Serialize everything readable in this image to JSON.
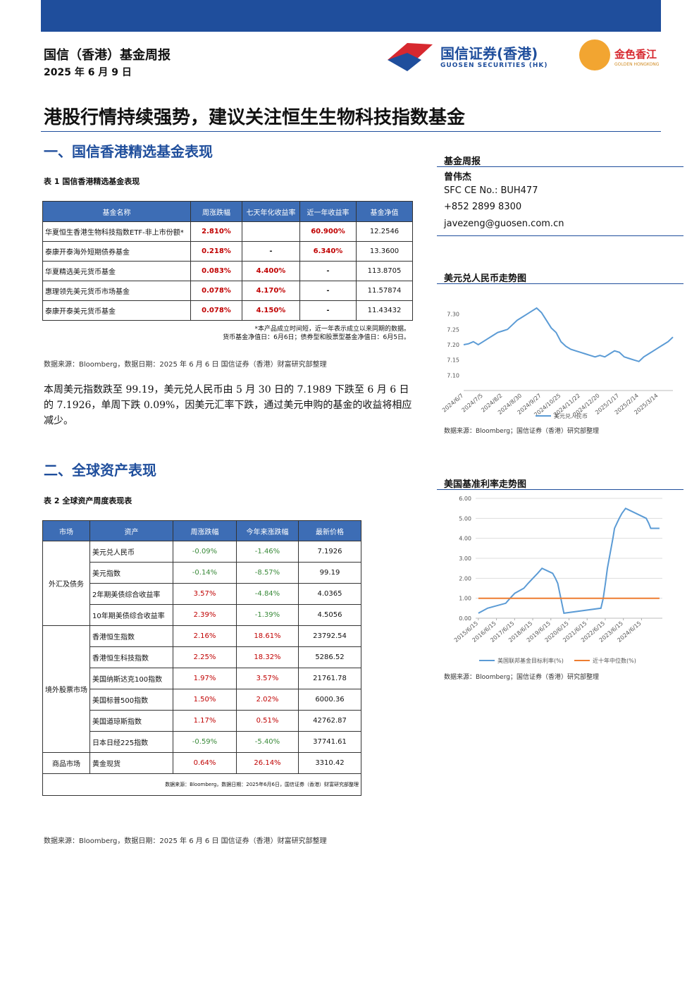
{
  "header": {
    "report": "国信（香港）基金周报",
    "date": "2025 年 6 月 9 日",
    "brand_cn": "国信证券(香港)",
    "brand_en": "GUOSEN SECURITIES (HK)",
    "partner_cn": "金色香江",
    "partner_en": "GOLDEN HONGKONG"
  },
  "title": "港股行情持续强势，建议关注恒生生物科技指数基金",
  "sidebar": {
    "label": "基金周报",
    "name": "曾伟杰",
    "sfc": "SFC CE No.: BUH477",
    "phone": "+852 2899 8300",
    "email": "javezeng@guosen.com.cn"
  },
  "section1": {
    "heading": "一、国信香港精选基金表现",
    "caption": "表 1   国信香港精选基金表现",
    "table": {
      "columns": [
        "基金名称",
        "周涨跌幅",
        "七天年化收益率",
        "近一年收益率",
        "基金净值"
      ],
      "rows": [
        [
          "华夏恒生香港生物科技指数ETF-非上市份额*",
          "2.810%",
          null,
          "60.900%",
          "12.2546"
        ],
        [
          "泰康开泰海外短期债券基金",
          "0.218%",
          "-",
          "6.340%",
          "13.3600"
        ],
        [
          "华夏精选美元货币基金",
          "0.083%",
          "4.400%",
          "-",
          "113.8705"
        ],
        [
          "惠理领先美元货币市场基金",
          "0.078%",
          "4.170%",
          "-",
          "11.57874"
        ],
        [
          "泰康开泰美元货币基金",
          "0.078%",
          "4.150%",
          "-",
          "11.43432"
        ]
      ]
    },
    "notes": [
      "*本产品成立时间短，近一年表示成立以来同期的数据。",
      "货币基金净值日：6月6日；债券型和股票型基金净值日：6月5日。"
    ],
    "source": "数据来源：Bloomberg，数据日期：2025 年 6 月 6 日 国信证券（香港）财富研究部整理",
    "paragraph": "本周美元指数跌至 99.19，美元兑人民币由 5 月 30 日的 7.1989 下跌至 6 月 6 日的 7.1926，单周下跌 0.09%，因美元汇率下跌，通过美元申购的基金的收益将相应减少。"
  },
  "section2": {
    "heading": "二、全球资产表现",
    "caption": "表 2   全球资产周度表现表",
    "table": {
      "columns": [
        "市场",
        "资产",
        "周涨跌幅",
        "今年来涨跌幅",
        "最新价格"
      ],
      "groups": [
        {
          "market": "外汇及债务",
          "rows": [
            [
              "美元兑人民币",
              "-0.09%",
              "-1.46%",
              "7.1926"
            ],
            [
              "美元指数",
              "-0.14%",
              "-8.57%",
              "99.19"
            ],
            [
              "2年期美债综合收益率",
              "3.57%",
              "-4.84%",
              "4.0365"
            ],
            [
              "10年期美债综合收益率",
              "2.39%",
              "-1.39%",
              "4.5056"
            ]
          ]
        },
        {
          "market": "境外股票市场",
          "rows": [
            [
              "香港恒生指数",
              "2.16%",
              "18.61%",
              "23792.54"
            ],
            [
              "香港恒生科技指数",
              "2.25%",
              "18.32%",
              "5286.52"
            ],
            [
              "美国纳斯达克100指数",
              "1.97%",
              "3.57%",
              "21761.78"
            ],
            [
              "美国标普500指数",
              "1.50%",
              "2.02%",
              "6000.36"
            ],
            [
              "美国道琼斯指数",
              "1.17%",
              "0.51%",
              "42762.87"
            ],
            [
              "日本日经225指数",
              "-0.59%",
              "-5.40%",
              "37741.61"
            ]
          ]
        },
        {
          "market": "商品市场",
          "rows": [
            [
              "黄金现货",
              "0.64%",
              "26.14%",
              "3310.42"
            ]
          ]
        }
      ],
      "note": "数据来源：Bloomberg，数据日期：2025年6月6日，国信证券（香港）财富研究部整理"
    },
    "source": "数据来源：Bloomberg，数据日期：2025 年 6 月 6 日 国信证券（香港）财富研究部整理"
  },
  "chart_data": [
    {
      "type": "line",
      "title": "美元兑人民币走势图",
      "source": "数据来源：Bloomberg；国信证券（香港）研究部整理",
      "categories": [
        "2024/6/7",
        null,
        null,
        null,
        "2024/7/5",
        null,
        null,
        null,
        "2024/8/2",
        null,
        null,
        null,
        "2024/8/30",
        null,
        null,
        null,
        "2024/9/27",
        null,
        null,
        null,
        "2024/10/25",
        null,
        null,
        null,
        "2024/11/22",
        null,
        null,
        null,
        "2024/12/20",
        null,
        null,
        null,
        "2025/1/17",
        null,
        null,
        null,
        "2025/2/14",
        null,
        null,
        null,
        "2025/3/14",
        null,
        null,
        null
      ],
      "series": [
        {
          "name": "美元兑人民币",
          "color": "#5b9bd5",
          "values": [
            7.2,
            7.203,
            7.21,
            7.2,
            7.21,
            7.22,
            7.23,
            7.24,
            7.245,
            7.25,
            7.265,
            7.28,
            7.29,
            7.3,
            7.31,
            7.32,
            7.305,
            7.28,
            7.255,
            7.24,
            7.21,
            7.195,
            7.185,
            7.18,
            7.175,
            7.17,
            7.165,
            7.16,
            7.165,
            7.16,
            7.17,
            7.18,
            7.175,
            7.16,
            7.155,
            7.15,
            7.145,
            7.16,
            7.17,
            7.18,
            7.19,
            7.2,
            7.21,
            7.225
          ]
        }
      ],
      "ylim": [
        7.05,
        7.35
      ],
      "yticks": [
        {
          "value": 7.1,
          "label": "7.10"
        },
        {
          "value": 7.15,
          "label": "7.15"
        },
        {
          "value": 7.2,
          "label": "7.20"
        },
        {
          "value": 7.25,
          "label": "7.25"
        },
        {
          "value": 7.3,
          "label": "7.30"
        }
      ],
      "grid": false
    },
    {
      "type": "line",
      "title": "美国基准利率走势图",
      "source": "数据来源：Bloomberg；国信证券（香港）研究部整理",
      "xlim": [
        2015.3,
        2025.6
      ],
      "xticks": [
        {
          "value": 2015.45,
          "label": "2015/6/15"
        },
        {
          "value": 2016.45,
          "label": "2016/6/15"
        },
        {
          "value": 2017.45,
          "label": "2017/6/15"
        },
        {
          "value": 2018.45,
          "label": "2018/6/15"
        },
        {
          "value": 2019.45,
          "label": "2019/6/15"
        },
        {
          "value": 2020.45,
          "label": "2020/6/15"
        },
        {
          "value": 2021.45,
          "label": "2021/6/15"
        },
        {
          "value": 2022.45,
          "label": "2022/6/15"
        },
        {
          "value": 2023.45,
          "label": "2023/6/15"
        },
        {
          "value": 2024.45,
          "label": "2024/6/15"
        }
      ],
      "series": [
        {
          "name": "美国联邦基金目标利率(%)",
          "color": "#5b9bd5",
          "x": [
            2015.45,
            2015.96,
            2016.96,
            2017.2,
            2017.46,
            2017.96,
            2018.2,
            2018.46,
            2018.72,
            2018.96,
            2019.55,
            2019.7,
            2019.83,
            2020.17,
            2022.21,
            2022.34,
            2022.46,
            2022.57,
            2022.72,
            2022.87,
            2022.96,
            2023.09,
            2023.22,
            2023.37,
            2023.57,
            2024.71,
            2024.85,
            2024.96,
            2025.44
          ],
          "values": [
            0.25,
            0.5,
            0.75,
            1.0,
            1.25,
            1.5,
            1.75,
            2.0,
            2.25,
            2.5,
            2.25,
            2.0,
            1.75,
            0.25,
            0.5,
            1.0,
            1.75,
            2.5,
            3.25,
            4.0,
            4.5,
            4.75,
            5.0,
            5.25,
            5.5,
            5.0,
            4.75,
            4.5,
            4.5
          ]
        },
        {
          "name": "近十年中位数(%)",
          "color": "#ed7d31",
          "x": [
            2015.45,
            2025.44
          ],
          "values": [
            1.0,
            1.0
          ]
        }
      ],
      "ylim": [
        0,
        6
      ],
      "yticks": [
        {
          "value": 0,
          "label": "0.00"
        },
        {
          "value": 1,
          "label": "1.00"
        },
        {
          "value": 2,
          "label": "2.00"
        },
        {
          "value": 3,
          "label": "3.00"
        },
        {
          "value": 4,
          "label": "4.00"
        },
        {
          "value": 5,
          "label": "5.00"
        },
        {
          "value": 6,
          "label": "6.00"
        }
      ],
      "grid": true
    }
  ]
}
